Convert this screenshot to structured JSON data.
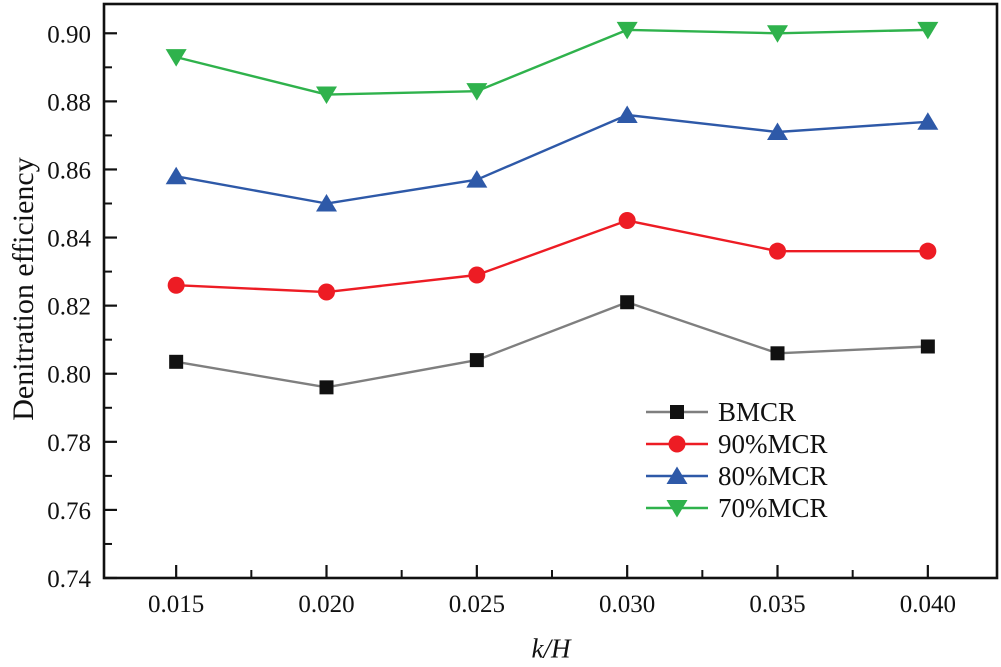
{
  "chart_data": {
    "type": "line",
    "title": "",
    "xlabel": "k/H",
    "ylabel": "Denitration efficiency",
    "grid": false,
    "legend_position": "inside-lower-right",
    "xlim": [
      0.0126,
      0.0423
    ],
    "ylim": [
      0.74,
      0.9086
    ],
    "x": [
      0.015,
      0.02,
      0.025,
      0.03,
      0.035,
      0.04
    ],
    "x_tick_labels": [
      "0.015",
      "0.020",
      "0.025",
      "0.030",
      "0.035",
      "0.040"
    ],
    "y_ticks": [
      0.74,
      0.76,
      0.78,
      0.8,
      0.82,
      0.84,
      0.86,
      0.88,
      0.9
    ],
    "y_tick_labels": [
      "0.74",
      "0.76",
      "0.78",
      "0.80",
      "0.82",
      "0.84",
      "0.86",
      "0.88",
      "0.90"
    ],
    "y_minor_ticks": [
      0.75,
      0.77,
      0.79,
      0.81,
      0.83,
      0.85,
      0.87,
      0.89
    ],
    "series": [
      {
        "name": "BMCR",
        "marker": "square",
        "line_color": "#7f7f7f",
        "marker_color": "#111111",
        "values": [
          0.8035,
          0.796,
          0.804,
          0.821,
          0.806,
          0.808
        ]
      },
      {
        "name": "90%MCR",
        "marker": "circle",
        "line_color": "#ed1c24",
        "marker_color": "#ed1c24",
        "values": [
          0.826,
          0.824,
          0.829,
          0.845,
          0.836,
          0.836
        ]
      },
      {
        "name": "80%MCR",
        "marker": "triangle-up",
        "line_color": "#2e59a8",
        "marker_color": "#2e59a8",
        "values": [
          0.858,
          0.85,
          0.857,
          0.876,
          0.871,
          0.874
        ]
      },
      {
        "name": "70%MCR",
        "marker": "triangle-down",
        "line_color": "#2fb24c",
        "marker_color": "#2fb24c",
        "values": [
          0.893,
          0.882,
          0.883,
          0.901,
          0.9,
          0.901
        ]
      }
    ]
  }
}
